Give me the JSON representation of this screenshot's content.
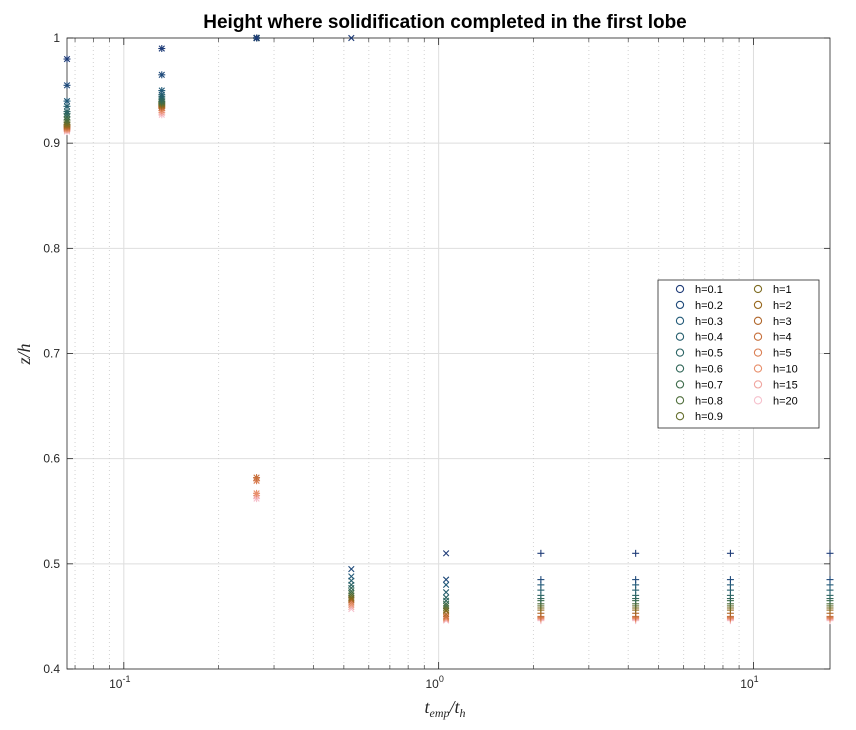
{
  "chart_data": {
    "type": "scatter",
    "title": "Height where solidification completed in the first lobe",
    "xlabel_base": "t",
    "xlabel_sub1": "emp",
    "xlabel_sep": "/t",
    "xlabel_sub2": "h",
    "ylabel": "z/h",
    "xscale": "log",
    "xlim": [
      0.066,
      17.5
    ],
    "ylim": [
      0.4,
      1.0
    ],
    "yticks": [
      0.4,
      0.5,
      0.6,
      0.7,
      0.8,
      0.9,
      1
    ],
    "ytick_labels": [
      "0.4",
      "0.5",
      "0.6",
      "0.7",
      "0.8",
      "0.9",
      "1"
    ],
    "xticks": [
      0.1,
      1,
      10
    ],
    "xtick_labels": [
      [
        "10",
        "-1"
      ],
      [
        "10",
        "0"
      ],
      [
        "10",
        "1"
      ]
    ],
    "grid": true,
    "legend_position": "right",
    "legend": [
      {
        "name": "h=0.1",
        "color": "#1f3c78"
      },
      {
        "name": "h=0.2",
        "color": "#1f4a7a"
      },
      {
        "name": "h=0.3",
        "color": "#225a78"
      },
      {
        "name": "h=0.4",
        "color": "#265f6e"
      },
      {
        "name": "h=0.5",
        "color": "#2b6464"
      },
      {
        "name": "h=0.6",
        "color": "#33685a"
      },
      {
        "name": "h=0.7",
        "color": "#3f6c4c"
      },
      {
        "name": "h=0.8",
        "color": "#4f6e3c"
      },
      {
        "name": "h=0.9",
        "color": "#656e2c"
      },
      {
        "name": "h=1",
        "color": "#7e6c22"
      },
      {
        "name": "h=2",
        "color": "#98681e"
      },
      {
        "name": "h=3",
        "color": "#b0662a"
      },
      {
        "name": "h=4",
        "color": "#c7703c"
      },
      {
        "name": "h=5",
        "color": "#da7f54"
      },
      {
        "name": "h=10",
        "color": "#e8906c"
      },
      {
        "name": "h=15",
        "color": "#f0a6a0"
      },
      {
        "name": "h=20",
        "color": "#f6c0cc"
      }
    ],
    "series": [
      {
        "marker": "star",
        "x": 0.066,
        "y": [
          0.98,
          0.955,
          0.94,
          0.935,
          0.93,
          0.928,
          0.925,
          0.922,
          0.92,
          0.918,
          0.917,
          0.916,
          0.915,
          0.914,
          0.913,
          0.912,
          0.911
        ]
      },
      {
        "marker": "star",
        "x": 0.132,
        "y": [
          0.99,
          0.965,
          0.95,
          0.946,
          0.944,
          0.942,
          0.94,
          0.939,
          0.938,
          0.937,
          0.936,
          0.935,
          0.934,
          0.933,
          0.931,
          0.929,
          0.927
        ]
      },
      {
        "marker": "star",
        "x": 0.264,
        "y": [
          1.0,
          1.0,
          1.0,
          1.0,
          1.0,
          1.0,
          1.0,
          1.0,
          1.0,
          1.0,
          1.0,
          1.0,
          0.582,
          0.579,
          0.567,
          0.565,
          0.562
        ]
      },
      {
        "marker": "x",
        "x": 0.528,
        "y": [
          1.0,
          0.495,
          0.488,
          0.484,
          0.48,
          0.477,
          0.474,
          0.472,
          0.47,
          0.468,
          0.467,
          0.466,
          0.465,
          0.463,
          0.461,
          0.459,
          0.457
        ]
      },
      {
        "marker": "x",
        "x": 1.056,
        "y": [
          0.51,
          0.485,
          0.48,
          0.473,
          0.468,
          0.465,
          0.462,
          0.46,
          0.458,
          0.456,
          0.455,
          0.452,
          0.45,
          0.449,
          0.448,
          0.447,
          0.446
        ]
      },
      {
        "marker": "plus",
        "x": 2.112,
        "y": [
          0.51,
          0.485,
          0.48,
          0.475,
          0.47,
          0.467,
          0.465,
          0.462,
          0.46,
          0.458,
          0.456,
          0.453,
          0.45,
          0.449,
          0.448,
          0.447,
          0.446
        ]
      },
      {
        "marker": "plus",
        "x": 4.224,
        "y": [
          0.51,
          0.485,
          0.48,
          0.475,
          0.47,
          0.467,
          0.465,
          0.462,
          0.46,
          0.458,
          0.456,
          0.453,
          0.45,
          0.449,
          0.448,
          0.447,
          0.446
        ]
      },
      {
        "marker": "plus",
        "x": 8.448,
        "y": [
          0.51,
          0.485,
          0.48,
          0.475,
          0.47,
          0.467,
          0.465,
          0.462,
          0.46,
          0.458,
          0.456,
          0.453,
          0.45,
          0.449,
          0.448,
          0.447,
          0.446
        ]
      },
      {
        "marker": "plus",
        "x": 17.5,
        "y": [
          0.51,
          0.485,
          0.48,
          0.475,
          0.47,
          0.467,
          0.465,
          0.462,
          0.46,
          0.458,
          0.456,
          0.453,
          0.45,
          0.449,
          0.448,
          0.447,
          0.446
        ]
      }
    ]
  }
}
